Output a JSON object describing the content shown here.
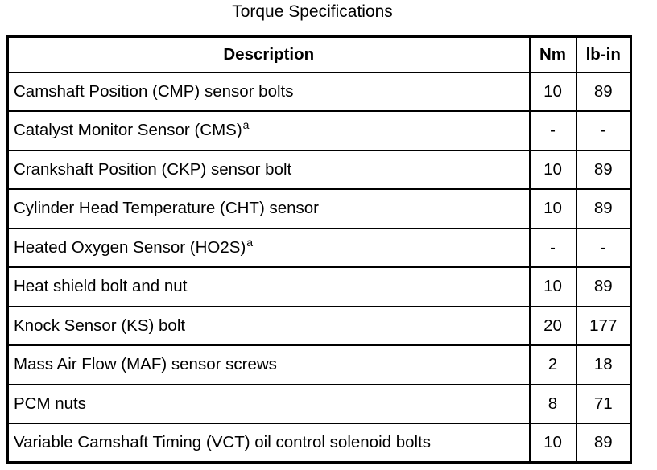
{
  "title": "Torque Specifications",
  "columns": [
    "Description",
    "Nm",
    "lb-in"
  ],
  "rows": [
    {
      "desc": "Camshaft Position (CMP) sensor bolts",
      "sup": "",
      "nm": "10",
      "lbin": "89"
    },
    {
      "desc": "Catalyst Monitor Sensor (CMS)",
      "sup": "a",
      "nm": "-",
      "lbin": "-"
    },
    {
      "desc": "Crankshaft Position (CKP) sensor bolt",
      "sup": "",
      "nm": "10",
      "lbin": "89"
    },
    {
      "desc": "Cylinder Head Temperature (CHT) sensor",
      "sup": "",
      "nm": "10",
      "lbin": "89"
    },
    {
      "desc": "Heated Oxygen Sensor (HO2S)",
      "sup": "a",
      "nm": "-",
      "lbin": "-"
    },
    {
      "desc": "Heat shield bolt and nut",
      "sup": "",
      "nm": "10",
      "lbin": "89"
    },
    {
      "desc": "Knock Sensor (KS) bolt",
      "sup": "",
      "nm": "20",
      "lbin": "177"
    },
    {
      "desc": "Mass Air Flow (MAF) sensor screws",
      "sup": "",
      "nm": "2",
      "lbin": "18"
    },
    {
      "desc": "PCM nuts",
      "sup": "",
      "nm": "8",
      "lbin": "71"
    },
    {
      "desc": "Variable Camshaft Timing (VCT) oil control solenoid bolts",
      "sup": "",
      "nm": "10",
      "lbin": "89"
    }
  ],
  "colors": {
    "border": "#000000",
    "background": "#ffffff",
    "text": "#000000"
  }
}
